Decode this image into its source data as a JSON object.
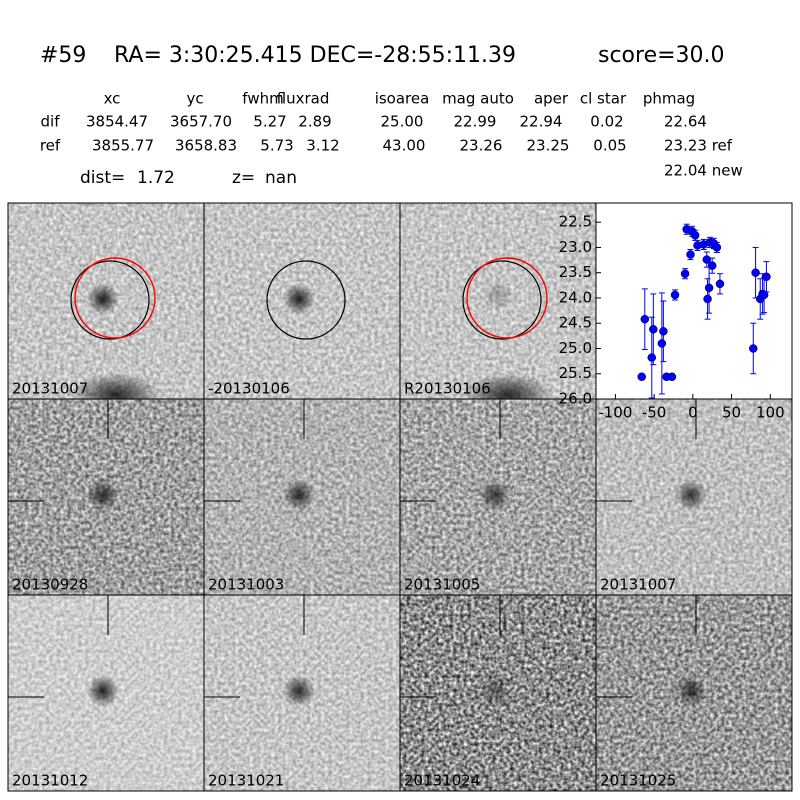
{
  "header": {
    "id": "#59",
    "coords": "RA= 3:30:25.415 DEC=-28:55:11.39",
    "score": "score=30.0"
  },
  "table": {
    "columns": [
      "xc",
      "yc",
      "fwhm",
      "fluxrad",
      "isoarea",
      "mag auto",
      "aper",
      "cl star",
      "phmag"
    ],
    "rows": [
      [
        "dif",
        "3854.47",
        "3657.70",
        "5.27",
        "2.89",
        "25.00",
        "22.99",
        "22.94",
        "0.02",
        "22.64"
      ],
      [
        "ref",
        "3855.77",
        "3658.83",
        "5.73",
        "3.12",
        "43.00",
        "23.26",
        "23.25",
        "0.05",
        "23.23 ref"
      ]
    ],
    "extra": "22.04 new"
  },
  "dist": {
    "dist_label": "dist=",
    "dist_value": "1.72",
    "z_label": "z=",
    "z_value": "nan"
  },
  "panels": [
    {
      "label": "20131007",
      "label_color": "#000000"
    },
    {
      "label": "-20130106",
      "label_color": "#000000"
    },
    {
      "label": "R20130106",
      "label_color": "#000000"
    },
    {
      "label": "20130928",
      "label_color": "#000000"
    },
    {
      "label": "20131003",
      "label_color": "#000000"
    },
    {
      "label": "20131005",
      "label_color": "#000000"
    },
    {
      "label": "20131007",
      "label_color": "#ff0000"
    },
    {
      "label": "20131012",
      "label_color": "#000000"
    },
    {
      "label": "20131021",
      "label_color": "#000000"
    },
    {
      "label": "20131024",
      "label_color": "#000000"
    },
    {
      "label": "20131025",
      "label_color": "#000000"
    }
  ],
  "chart_data": {
    "type": "errorbar",
    "color": "#0000ff",
    "xlim": [
      -125,
      128
    ],
    "xticks": [
      -100,
      -50,
      0,
      50,
      100
    ],
    "ylim": [
      26.0,
      22.12
    ],
    "yticks": [
      22.5,
      {
        "value": 23.0,
        "label": "23.0"
      },
      23.5,
      {
        "value": 24.0,
        "label": "24.0"
      },
      24.5,
      {
        "value": 25.0,
        "label": "25.0"
      },
      25.5,
      {
        "value": 26.0,
        "label": "26.0"
      }
    ],
    "x": [
      -66,
      -62,
      -53,
      -51,
      -40,
      -38,
      -34,
      -27,
      -23,
      -10,
      -8,
      -3,
      -1,
      3,
      6,
      14,
      18,
      19,
      21,
      22,
      25,
      27,
      31,
      35,
      78,
      81,
      87,
      90,
      92,
      95
    ],
    "values": [
      25.56,
      24.42,
      25.18,
      24.62,
      24.9,
      24.66,
      25.56,
      25.56,
      23.94,
      23.52,
      22.64,
      23.14,
      22.68,
      22.76,
      22.96,
      22.94,
      23.24,
      24.02,
      23.8,
      22.9,
      23.36,
      22.92,
      23.0,
      23.72,
      25.0,
      23.5,
      24.02,
      23.92,
      23.94,
      23.58
    ],
    "errors": [
      0.05,
      0.6,
      0.8,
      0.7,
      1.0,
      0.6,
      0.05,
      0.05,
      0.1,
      0.1,
      0.1,
      0.1,
      0.1,
      0.1,
      0.1,
      0.1,
      0.15,
      0.4,
      0.5,
      0.1,
      0.15,
      0.1,
      0.1,
      0.2,
      0.5,
      0.5,
      0.4,
      0.4,
      0.35,
      0.3
    ]
  }
}
